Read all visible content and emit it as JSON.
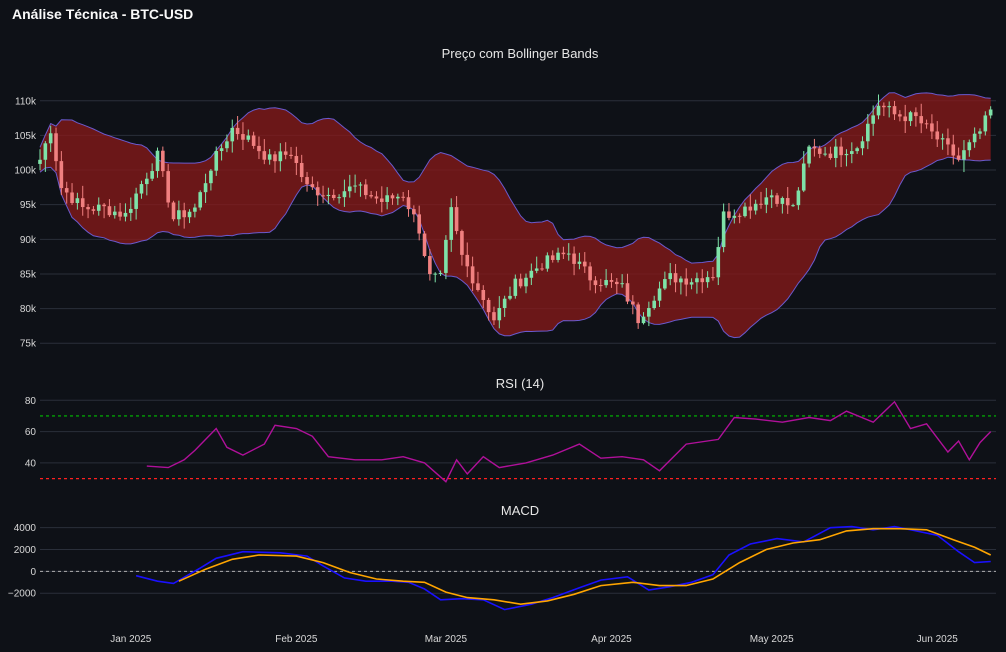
{
  "app_title": "Análise Técnica - BTC-USD",
  "colors": {
    "background": "#0e1117",
    "grid": "#2a2f3a",
    "candle_up": "#7ee2a8",
    "candle_down": "#f08080",
    "band_fill": "#8b1a1a",
    "band_line": "#6a5acd",
    "rsi": "#b0109a",
    "overbought": "#00c000",
    "oversold": "#ff2020",
    "macd": "#1a10ff",
    "signal": "#ffa500",
    "zero_line": "#b0b0b0"
  },
  "chart_data": [
    {
      "type": "candlestick",
      "title": "Preço com Bollinger Bands",
      "ylim": [
        72000,
        113000
      ],
      "y_ticks": [
        75000,
        80000,
        85000,
        90000,
        95000,
        100000,
        105000,
        110000
      ],
      "y_tick_labels": [
        "75k",
        "80k",
        "85k",
        "90k",
        "95k",
        "100k",
        "105k",
        "110k"
      ],
      "x_range": [
        "2024-12-15",
        "2025-06-12"
      ],
      "x_ticks": [
        "2025-01-01",
        "2025-02-01",
        "2025-03-01",
        "2025-04-01",
        "2025-05-01",
        "2025-06-01"
      ],
      "x_tick_labels": [
        "Jan 2025",
        "Feb 2025",
        "Mar 2025",
        "Apr 2025",
        "May 2025",
        "Jun 2025"
      ],
      "close_keypoints": [
        [
          "2024-12-15",
          101500
        ],
        [
          "2024-12-17",
          106000
        ],
        [
          "2024-12-19",
          97500
        ],
        [
          "2024-12-23",
          94500
        ],
        [
          "2024-12-27",
          94500
        ],
        [
          "2024-12-31",
          93500
        ],
        [
          "2025-01-03",
          98000
        ],
        [
          "2025-01-06",
          102000
        ],
        [
          "2025-01-09",
          93000
        ],
        [
          "2025-01-13",
          94500
        ],
        [
          "2025-01-16",
          100500
        ],
        [
          "2025-01-20",
          106000
        ],
        [
          "2025-01-23",
          104500
        ],
        [
          "2025-01-27",
          101500
        ],
        [
          "2025-01-31",
          102500
        ],
        [
          "2025-02-03",
          97500
        ],
        [
          "2025-02-07",
          96500
        ],
        [
          "2025-02-12",
          97500
        ],
        [
          "2025-02-17",
          95500
        ],
        [
          "2025-02-21",
          96500
        ],
        [
          "2025-02-24",
          91500
        ],
        [
          "2025-02-26",
          84500
        ],
        [
          "2025-02-28",
          84300
        ],
        [
          "2025-03-02",
          94000
        ],
        [
          "2025-03-04",
          87500
        ],
        [
          "2025-03-10",
          78500
        ],
        [
          "2025-03-14",
          83500
        ],
        [
          "2025-03-19",
          86500
        ],
        [
          "2025-03-24",
          88000
        ],
        [
          "2025-03-28",
          84500
        ],
        [
          "2025-04-03",
          83000
        ],
        [
          "2025-04-06",
          78500
        ],
        [
          "2025-04-09",
          82000
        ],
        [
          "2025-04-12",
          84500
        ],
        [
          "2025-04-16",
          84200
        ],
        [
          "2025-04-20",
          85000
        ],
        [
          "2025-04-22",
          93500
        ],
        [
          "2025-04-26",
          94500
        ],
        [
          "2025-05-01",
          96500
        ],
        [
          "2025-05-05",
          94500
        ],
        [
          "2025-05-08",
          103000
        ],
        [
          "2025-05-12",
          102500
        ],
        [
          "2025-05-17",
          103500
        ],
        [
          "2025-05-21",
          109500
        ],
        [
          "2025-05-24",
          108000
        ],
        [
          "2025-05-28",
          107500
        ],
        [
          "2025-06-01",
          104500
        ],
        [
          "2025-06-05",
          101500
        ],
        [
          "2025-06-09",
          105500
        ],
        [
          "2025-06-11",
          108500
        ]
      ]
    },
    {
      "type": "line",
      "title": "RSI (14)",
      "ylim": [
        24,
        84
      ],
      "y_ticks": [
        40,
        60,
        80
      ],
      "y_tick_labels": [
        "40",
        "60",
        "80"
      ],
      "thresholds": [
        70,
        30
      ],
      "series": [
        {
          "values": [
            [
              "2025-01-04",
              38
            ],
            [
              "2025-01-08",
              37
            ],
            [
              "2025-01-11",
              42
            ],
            [
              "2025-01-13",
              48
            ],
            [
              "2025-01-15",
              55
            ],
            [
              "2025-01-17",
              62
            ],
            [
              "2025-01-19",
              50
            ],
            [
              "2025-01-22",
              45
            ],
            [
              "2025-01-26",
              52
            ],
            [
              "2025-01-28",
              64
            ],
            [
              "2025-02-01",
              62
            ],
            [
              "2025-02-04",
              57
            ],
            [
              "2025-02-07",
              44
            ],
            [
              "2025-02-12",
              42
            ],
            [
              "2025-02-17",
              42
            ],
            [
              "2025-02-21",
              44
            ],
            [
              "2025-02-25",
              40
            ],
            [
              "2025-02-27",
              34
            ],
            [
              "2025-03-01",
              28
            ],
            [
              "2025-03-03",
              42
            ],
            [
              "2025-03-05",
              33
            ],
            [
              "2025-03-08",
              44
            ],
            [
              "2025-03-11",
              37
            ],
            [
              "2025-03-16",
              40
            ],
            [
              "2025-03-21",
              45
            ],
            [
              "2025-03-26",
              52
            ],
            [
              "2025-03-30",
              43
            ],
            [
              "2025-04-03",
              44
            ],
            [
              "2025-04-07",
              42
            ],
            [
              "2025-04-10",
              35
            ],
            [
              "2025-04-15",
              52
            ],
            [
              "2025-04-21",
              55
            ],
            [
              "2025-04-24",
              69
            ],
            [
              "2025-04-28",
              68
            ],
            [
              "2025-05-03",
              66
            ],
            [
              "2025-05-08",
              69
            ],
            [
              "2025-05-12",
              67
            ],
            [
              "2025-05-15",
              73
            ],
            [
              "2025-05-20",
              66
            ],
            [
              "2025-05-24",
              79
            ],
            [
              "2025-05-27",
              62
            ],
            [
              "2025-05-30",
              65
            ],
            [
              "2025-06-03",
              47
            ],
            [
              "2025-06-05",
              54
            ],
            [
              "2025-06-07",
              42
            ],
            [
              "2025-06-09",
              53
            ],
            [
              "2025-06-11",
              60
            ]
          ]
        }
      ]
    },
    {
      "type": "line",
      "title": "MACD",
      "ylim": [
        -3900,
        4700
      ],
      "y_ticks": [
        -2000,
        0,
        2000,
        4000
      ],
      "y_tick_labels": [
        "−2000",
        "0",
        "2000",
        "4000"
      ],
      "zero_line": true,
      "series": [
        {
          "values": [
            [
              "2025-01-02",
              -400
            ],
            [
              "2025-01-06",
              -900
            ],
            [
              "2025-01-09",
              -1100
            ],
            [
              "2025-01-14",
              300
            ],
            [
              "2025-01-17",
              1200
            ],
            [
              "2025-01-22",
              1800
            ],
            [
              "2025-01-29",
              1700
            ],
            [
              "2025-02-03",
              1400
            ],
            [
              "2025-02-06",
              500
            ],
            [
              "2025-02-10",
              -600
            ],
            [
              "2025-02-14",
              -900
            ],
            [
              "2025-02-19",
              -900
            ],
            [
              "2025-02-22",
              -1000
            ],
            [
              "2025-02-25",
              -1600
            ],
            [
              "2025-02-28",
              -2600
            ],
            [
              "2025-03-04",
              -2500
            ],
            [
              "2025-03-08",
              -2600
            ],
            [
              "2025-03-12",
              -3500
            ],
            [
              "2025-03-17",
              -3000
            ],
            [
              "2025-03-21",
              -2400
            ],
            [
              "2025-03-26",
              -1500
            ],
            [
              "2025-03-30",
              -800
            ],
            [
              "2025-04-04",
              -500
            ],
            [
              "2025-04-08",
              -1700
            ],
            [
              "2025-04-12",
              -1400
            ],
            [
              "2025-04-16",
              -1000
            ],
            [
              "2025-04-20",
              -300
            ],
            [
              "2025-04-23",
              1500
            ],
            [
              "2025-04-27",
              2500
            ],
            [
              "2025-05-02",
              3000
            ],
            [
              "2025-05-07",
              2700
            ],
            [
              "2025-05-12",
              4000
            ],
            [
              "2025-05-16",
              4100
            ],
            [
              "2025-05-20",
              3800
            ],
            [
              "2025-05-24",
              4100
            ],
            [
              "2025-05-28",
              3700
            ],
            [
              "2025-06-01",
              3300
            ],
            [
              "2025-06-05",
              1800
            ],
            [
              "2025-06-08",
              800
            ],
            [
              "2025-06-11",
              900
            ]
          ]
        },
        {
          "values": [
            [
              "2025-01-10",
              -900
            ],
            [
              "2025-01-15",
              200
            ],
            [
              "2025-01-20",
              1100
            ],
            [
              "2025-01-25",
              1500
            ],
            [
              "2025-02-01",
              1400
            ],
            [
              "2025-02-06",
              800
            ],
            [
              "2025-02-11",
              -100
            ],
            [
              "2025-02-16",
              -700
            ],
            [
              "2025-02-21",
              -900
            ],
            [
              "2025-02-25",
              -1000
            ],
            [
              "2025-03-01",
              -1900
            ],
            [
              "2025-03-05",
              -2400
            ],
            [
              "2025-03-10",
              -2600
            ],
            [
              "2025-03-15",
              -3000
            ],
            [
              "2025-03-20",
              -2700
            ],
            [
              "2025-03-25",
              -2100
            ],
            [
              "2025-03-30",
              -1300
            ],
            [
              "2025-04-05",
              -1000
            ],
            [
              "2025-04-10",
              -1300
            ],
            [
              "2025-04-15",
              -1300
            ],
            [
              "2025-04-20",
              -700
            ],
            [
              "2025-04-25",
              800
            ],
            [
              "2025-04-30",
              2000
            ],
            [
              "2025-05-05",
              2600
            ],
            [
              "2025-05-10",
              2900
            ],
            [
              "2025-05-15",
              3700
            ],
            [
              "2025-05-20",
              3900
            ],
            [
              "2025-05-25",
              3900
            ],
            [
              "2025-05-30",
              3800
            ],
            [
              "2025-06-04",
              2900
            ],
            [
              "2025-06-08",
              2200
            ],
            [
              "2025-06-11",
              1500
            ]
          ]
        }
      ]
    }
  ]
}
